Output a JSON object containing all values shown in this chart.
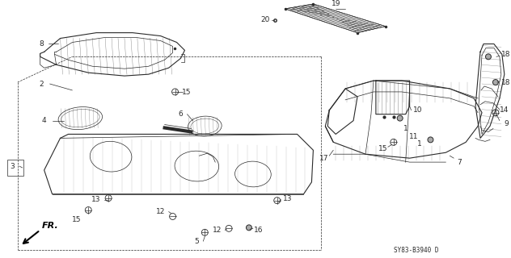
{
  "background_color": "#ffffff",
  "line_color": "#2a2a2a",
  "diagram_code": "SY83-B3940 D",
  "fig_width": 6.32,
  "fig_height": 3.2,
  "dpi": 100
}
